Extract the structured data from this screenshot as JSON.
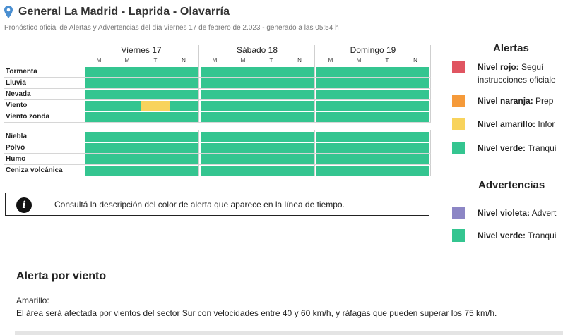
{
  "header": {
    "title": "General La Madrid - Laprida - Olavarría",
    "subtitle": "Pronóstico oficial de Alertas y Advertencias del día viernes 17 de febrero de 2.023 - generado a las 05:54 h"
  },
  "timeline": {
    "days": [
      {
        "label": "Viernes 17",
        "periods": [
          "M",
          "M",
          "T",
          "N"
        ]
      },
      {
        "label": "Sábado 18",
        "periods": [
          "M",
          "M",
          "T",
          "N"
        ]
      },
      {
        "label": "Domingo 19",
        "periods": [
          "M",
          "M",
          "T",
          "N"
        ]
      }
    ],
    "group1": [
      "Tormenta",
      "Lluvia",
      "Nevada",
      "Viento",
      "Viento zonda"
    ],
    "group2": [
      "Niebla",
      "Polvo",
      "Humo",
      "Ceniza volcánica"
    ],
    "highlight": {
      "phenomenon": "Viento",
      "day": "Viernes 17",
      "from_fraction": 0.5,
      "to_fraction": 0.75,
      "level": "amarillo"
    }
  },
  "info": {
    "icon": "info-icon",
    "text": "Consultá la descripción del color de alerta que aparece en la línea de tiempo."
  },
  "legend": {
    "alertas_title": "Alertas",
    "alertas": [
      {
        "level": "Nivel rojo:",
        "desc": "Seguí",
        "desc2": "instrucciones oficiale",
        "color": "#e05561"
      },
      {
        "level": "Nivel naranja:",
        "desc": "Prep",
        "color": "#f59a3a"
      },
      {
        "level": "Nivel amarillo:",
        "desc": "Infor",
        "color": "#f8d35c"
      },
      {
        "level": "Nivel verde:",
        "desc": "Tranqui",
        "color": "#34c590"
      }
    ],
    "advertencias_title": "Advertencias",
    "advertencias": [
      {
        "level": "Nivel violeta:",
        "desc": "Advert",
        "color": "#8c86c5"
      },
      {
        "level": "Nivel verde:",
        "desc": "Tranqui",
        "color": "#34c590"
      }
    ]
  },
  "alert": {
    "title": "Alerta por viento",
    "level": "Amarillo:",
    "description": "El área será afectada por vientos del sector Sur con velocidades entre 40 y 60 km/h, y ráfagas que pueden superar los 75 km/h."
  },
  "colors": {
    "green": "#34c590",
    "yellow": "#f8d35c"
  }
}
